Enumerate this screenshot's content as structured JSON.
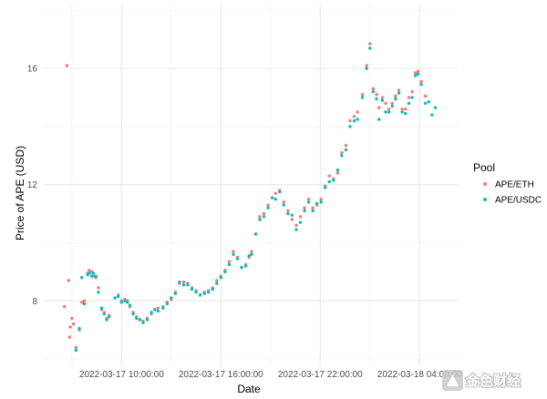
{
  "chart_data": {
    "type": "scatter",
    "xlabel": "Date",
    "ylabel": "Price of APE (USD)",
    "x_tick_labels": [
      "2022-03-17 10:00:00",
      "2022-03-17 16:00:00",
      "2022-03-17 22:00:00",
      "2022-03-18 04:00:00"
    ],
    "x_ticks_hours": [
      10,
      16,
      22,
      28
    ],
    "x_tick_unit": "hours after 2022-03-17 00:00",
    "xlim_hours": [
      5.3,
      30.3
    ],
    "yticks": [
      8,
      12,
      16
    ],
    "ylim": [
      5.75,
      18.2
    ],
    "grid": true,
    "legend": {
      "title": "Pool",
      "position": "right"
    },
    "series": [
      {
        "name": "APE/ETH",
        "color": "#F8766D",
        "points": [
          [
            6.55,
            7.8
          ],
          [
            6.7,
            16.1
          ],
          [
            6.8,
            8.7
          ],
          [
            6.85,
            6.75
          ],
          [
            6.9,
            7.1
          ],
          [
            7.0,
            7.4
          ],
          [
            7.1,
            7.2
          ],
          [
            7.25,
            6.4
          ],
          [
            7.45,
            7.0
          ],
          [
            7.6,
            7.95
          ],
          [
            7.75,
            8.0
          ],
          [
            7.95,
            8.95
          ],
          [
            8.05,
            9.05
          ],
          [
            8.2,
            9.0
          ],
          [
            8.3,
            8.85
          ],
          [
            8.45,
            8.8
          ],
          [
            8.6,
            8.45
          ],
          [
            8.8,
            7.7
          ],
          [
            8.95,
            7.6
          ],
          [
            9.1,
            7.4
          ],
          [
            9.25,
            7.5
          ],
          [
            9.6,
            8.1
          ],
          [
            9.8,
            8.2
          ],
          [
            10.0,
            8.0
          ],
          [
            10.2,
            8.05
          ],
          [
            10.35,
            8.0
          ],
          [
            10.5,
            7.8
          ],
          [
            10.7,
            7.6
          ],
          [
            10.9,
            7.45
          ],
          [
            11.1,
            7.35
          ],
          [
            11.3,
            7.3
          ],
          [
            11.55,
            7.4
          ],
          [
            11.8,
            7.55
          ],
          [
            12.0,
            7.7
          ],
          [
            12.2,
            7.75
          ],
          [
            12.5,
            7.8
          ],
          [
            12.75,
            7.95
          ],
          [
            13.0,
            8.05
          ],
          [
            13.25,
            8.3
          ],
          [
            13.5,
            8.6
          ],
          [
            13.75,
            8.65
          ],
          [
            14.0,
            8.6
          ],
          [
            14.25,
            8.45
          ],
          [
            14.5,
            8.35
          ],
          [
            14.75,
            8.2
          ],
          [
            15.0,
            8.3
          ],
          [
            15.25,
            8.35
          ],
          [
            15.5,
            8.45
          ],
          [
            15.75,
            8.7
          ],
          [
            16.0,
            8.85
          ],
          [
            16.25,
            9.05
          ],
          [
            16.5,
            9.35
          ],
          [
            16.75,
            9.7
          ],
          [
            17.0,
            9.5
          ],
          [
            17.25,
            9.15
          ],
          [
            17.5,
            9.25
          ],
          [
            17.7,
            9.5
          ],
          [
            17.85,
            9.7
          ],
          [
            18.1,
            10.3
          ],
          [
            18.35,
            10.9
          ],
          [
            18.6,
            11.0
          ],
          [
            18.85,
            11.3
          ],
          [
            19.1,
            11.55
          ],
          [
            19.3,
            11.7
          ],
          [
            19.55,
            11.8
          ],
          [
            19.8,
            11.4
          ],
          [
            20.05,
            11.1
          ],
          [
            20.3,
            10.8
          ],
          [
            20.55,
            10.6
          ],
          [
            20.8,
            10.9
          ],
          [
            21.05,
            11.2
          ],
          [
            21.3,
            11.5
          ],
          [
            21.55,
            11.2
          ],
          [
            21.8,
            11.3
          ],
          [
            22.05,
            11.5
          ],
          [
            22.3,
            11.95
          ],
          [
            22.55,
            12.3
          ],
          [
            22.8,
            12.2
          ],
          [
            23.05,
            12.4
          ],
          [
            23.3,
            13.1
          ],
          [
            23.55,
            13.35
          ],
          [
            23.8,
            14.2
          ],
          [
            24.05,
            14.35
          ],
          [
            24.25,
            14.5
          ],
          [
            24.55,
            15.1
          ],
          [
            24.8,
            16.1
          ],
          [
            25.0,
            16.85
          ],
          [
            25.2,
            15.3
          ],
          [
            25.4,
            15.1
          ],
          [
            25.55,
            14.65
          ],
          [
            25.75,
            15.0
          ],
          [
            25.95,
            14.8
          ],
          [
            26.15,
            14.6
          ],
          [
            26.35,
            14.8
          ],
          [
            26.55,
            15.05
          ],
          [
            26.75,
            15.25
          ],
          [
            26.95,
            14.6
          ],
          [
            27.15,
            14.6
          ],
          [
            27.35,
            15.0
          ],
          [
            27.55,
            15.2
          ],
          [
            27.75,
            15.85
          ],
          [
            27.9,
            15.9
          ],
          [
            28.1,
            15.55
          ],
          [
            28.35,
            15.05
          ]
        ]
      },
      {
        "name": "APE/USDC",
        "color": "#00BFC4",
        "points": [
          [
            7.25,
            6.3
          ],
          [
            7.45,
            7.05
          ],
          [
            7.6,
            8.8
          ],
          [
            7.75,
            7.9
          ],
          [
            7.95,
            8.9
          ],
          [
            8.05,
            8.95
          ],
          [
            8.2,
            8.85
          ],
          [
            8.3,
            8.95
          ],
          [
            8.45,
            8.85
          ],
          [
            8.6,
            8.3
          ],
          [
            8.8,
            7.75
          ],
          [
            8.95,
            7.55
          ],
          [
            9.1,
            7.35
          ],
          [
            9.25,
            7.45
          ],
          [
            9.6,
            8.1
          ],
          [
            9.8,
            8.15
          ],
          [
            10.0,
            7.95
          ],
          [
            10.2,
            8.0
          ],
          [
            10.35,
            7.95
          ],
          [
            10.5,
            7.85
          ],
          [
            10.7,
            7.55
          ],
          [
            10.9,
            7.4
          ],
          [
            11.1,
            7.35
          ],
          [
            11.3,
            7.25
          ],
          [
            11.55,
            7.35
          ],
          [
            11.8,
            7.6
          ],
          [
            12.0,
            7.7
          ],
          [
            12.2,
            7.65
          ],
          [
            12.5,
            7.75
          ],
          [
            12.75,
            7.9
          ],
          [
            13.0,
            8.1
          ],
          [
            13.25,
            8.25
          ],
          [
            13.5,
            8.65
          ],
          [
            13.75,
            8.55
          ],
          [
            14.0,
            8.55
          ],
          [
            14.25,
            8.4
          ],
          [
            14.5,
            8.3
          ],
          [
            14.75,
            8.2
          ],
          [
            15.0,
            8.25
          ],
          [
            15.25,
            8.3
          ],
          [
            15.5,
            8.4
          ],
          [
            15.75,
            8.6
          ],
          [
            16.0,
            8.8
          ],
          [
            16.25,
            9.0
          ],
          [
            16.5,
            9.25
          ],
          [
            16.75,
            9.6
          ],
          [
            17.0,
            9.45
          ],
          [
            17.25,
            9.15
          ],
          [
            17.5,
            9.2
          ],
          [
            17.7,
            9.55
          ],
          [
            17.85,
            9.6
          ],
          [
            18.1,
            10.3
          ],
          [
            18.35,
            10.8
          ],
          [
            18.6,
            10.9
          ],
          [
            18.85,
            11.2
          ],
          [
            19.1,
            11.55
          ],
          [
            19.3,
            11.5
          ],
          [
            19.55,
            11.75
          ],
          [
            19.8,
            11.3
          ],
          [
            20.05,
            11.0
          ],
          [
            20.3,
            10.95
          ],
          [
            20.55,
            10.45
          ],
          [
            20.8,
            10.7
          ],
          [
            21.05,
            11.1
          ],
          [
            21.3,
            11.4
          ],
          [
            21.55,
            11.1
          ],
          [
            21.8,
            11.35
          ],
          [
            22.05,
            11.4
          ],
          [
            22.3,
            11.9
          ],
          [
            22.55,
            12.1
          ],
          [
            22.8,
            12.15
          ],
          [
            23.05,
            12.5
          ],
          [
            23.3,
            13.0
          ],
          [
            23.55,
            13.2
          ],
          [
            23.8,
            14.0
          ],
          [
            24.05,
            14.2
          ],
          [
            24.25,
            14.25
          ],
          [
            24.55,
            15.0
          ],
          [
            24.8,
            16.0
          ],
          [
            25.0,
            16.7
          ],
          [
            25.2,
            15.2
          ],
          [
            25.4,
            14.95
          ],
          [
            25.55,
            14.25
          ],
          [
            25.75,
            14.9
          ],
          [
            25.95,
            14.5
          ],
          [
            26.15,
            14.5
          ],
          [
            26.35,
            14.7
          ],
          [
            26.55,
            14.95
          ],
          [
            26.75,
            15.15
          ],
          [
            26.95,
            14.5
          ],
          [
            27.15,
            14.45
          ],
          [
            27.35,
            14.8
          ],
          [
            27.55,
            15.0
          ],
          [
            27.75,
            15.75
          ],
          [
            27.9,
            15.8
          ],
          [
            28.1,
            15.45
          ],
          [
            28.35,
            14.8
          ],
          [
            28.55,
            14.85
          ],
          [
            28.75,
            14.4
          ],
          [
            28.95,
            14.65
          ]
        ]
      }
    ]
  },
  "watermark": {
    "text": "金色财经"
  }
}
